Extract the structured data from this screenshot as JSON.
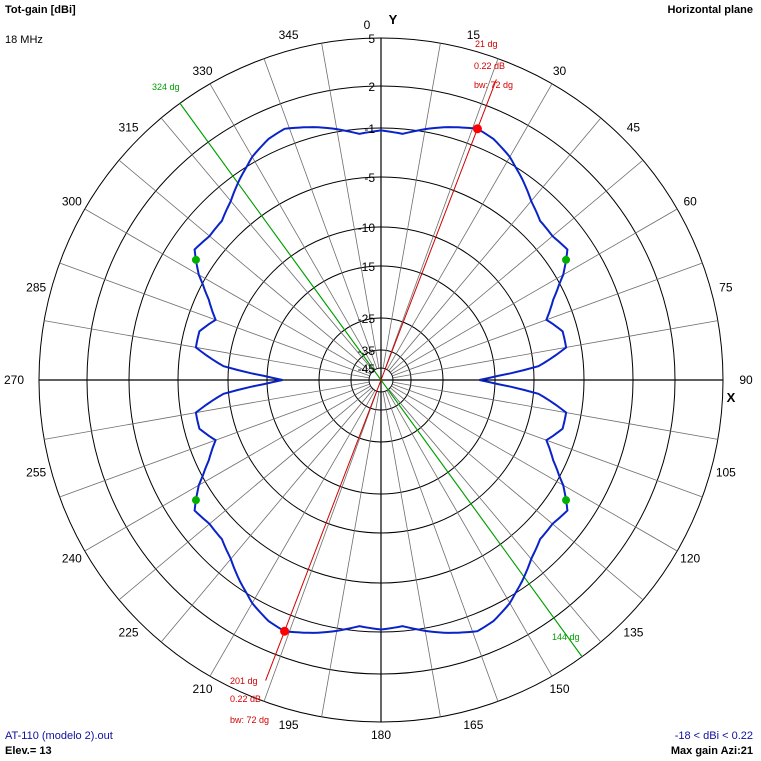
{
  "header": {
    "title": "Tot-gain [dBi]",
    "plane": "Horizontal plane",
    "frequency": "18 MHz"
  },
  "footer": {
    "file": "AT-110 (modelo 2).out",
    "elevation": "Elev.= 13",
    "range": "-18 < dBi < 0.22",
    "max_gain": "Max gain Azi:21"
  },
  "colors": {
    "pattern": "#0a23c8",
    "beam_line": "#d00000",
    "half_power_line": "#00a000",
    "grid": "#000000",
    "max_marker": "#ff0000",
    "half_power_marker": "#00b000"
  },
  "chart_data": {
    "type": "polar",
    "title": "Tot-gain [dBi]",
    "plane": "Horizontal plane",
    "axis_labels": {
      "y": "Y",
      "x": "X"
    },
    "azimuth_ticks": [
      0,
      15,
      30,
      45,
      60,
      75,
      90,
      105,
      120,
      135,
      150,
      165,
      180,
      195,
      210,
      225,
      240,
      255,
      270,
      285,
      300,
      315,
      330,
      345
    ],
    "radial_tick_labels": [
      "5",
      "2",
      "-1",
      "-5",
      "-10",
      "-15",
      "-25",
      "-35",
      "-45"
    ],
    "gain_max_dbi": 0.22,
    "gain_min_dbi": -18,
    "pattern_azimuth_deg": [
      0,
      5,
      10,
      15,
      21,
      25,
      30,
      35,
      40,
      45,
      50,
      55,
      60,
      65,
      70,
      75,
      80,
      85,
      90
    ],
    "pattern_gain_dbi": [
      -1.2,
      -1.4,
      -0.8,
      -0.3,
      0.22,
      0.0,
      -0.6,
      -1.5,
      -2.5,
      -3.2,
      -3.3,
      -3.0,
      -4.4,
      -6.3,
      -7.7,
      -6.5,
      -6.5,
      -9.5,
      -18
    ],
    "pattern_symmetry": "mirror about 0-180 and 90-270 axes",
    "main_lobe": {
      "azimuth": "21 dg",
      "gain": "0.22 dB",
      "beamwidth": "bw: 72 dg"
    },
    "back_lobe": {
      "azimuth": "201 dg",
      "gain": "0.22 dB",
      "beamwidth": "bw: 72 dg"
    },
    "half_power_lines": [
      {
        "label": "324 dg",
        "azimuth": 324
      },
      {
        "label": "144 dg",
        "azimuth": 144
      }
    ],
    "half_power_point_azimuths": [
      57,
      123,
      237,
      303
    ]
  }
}
